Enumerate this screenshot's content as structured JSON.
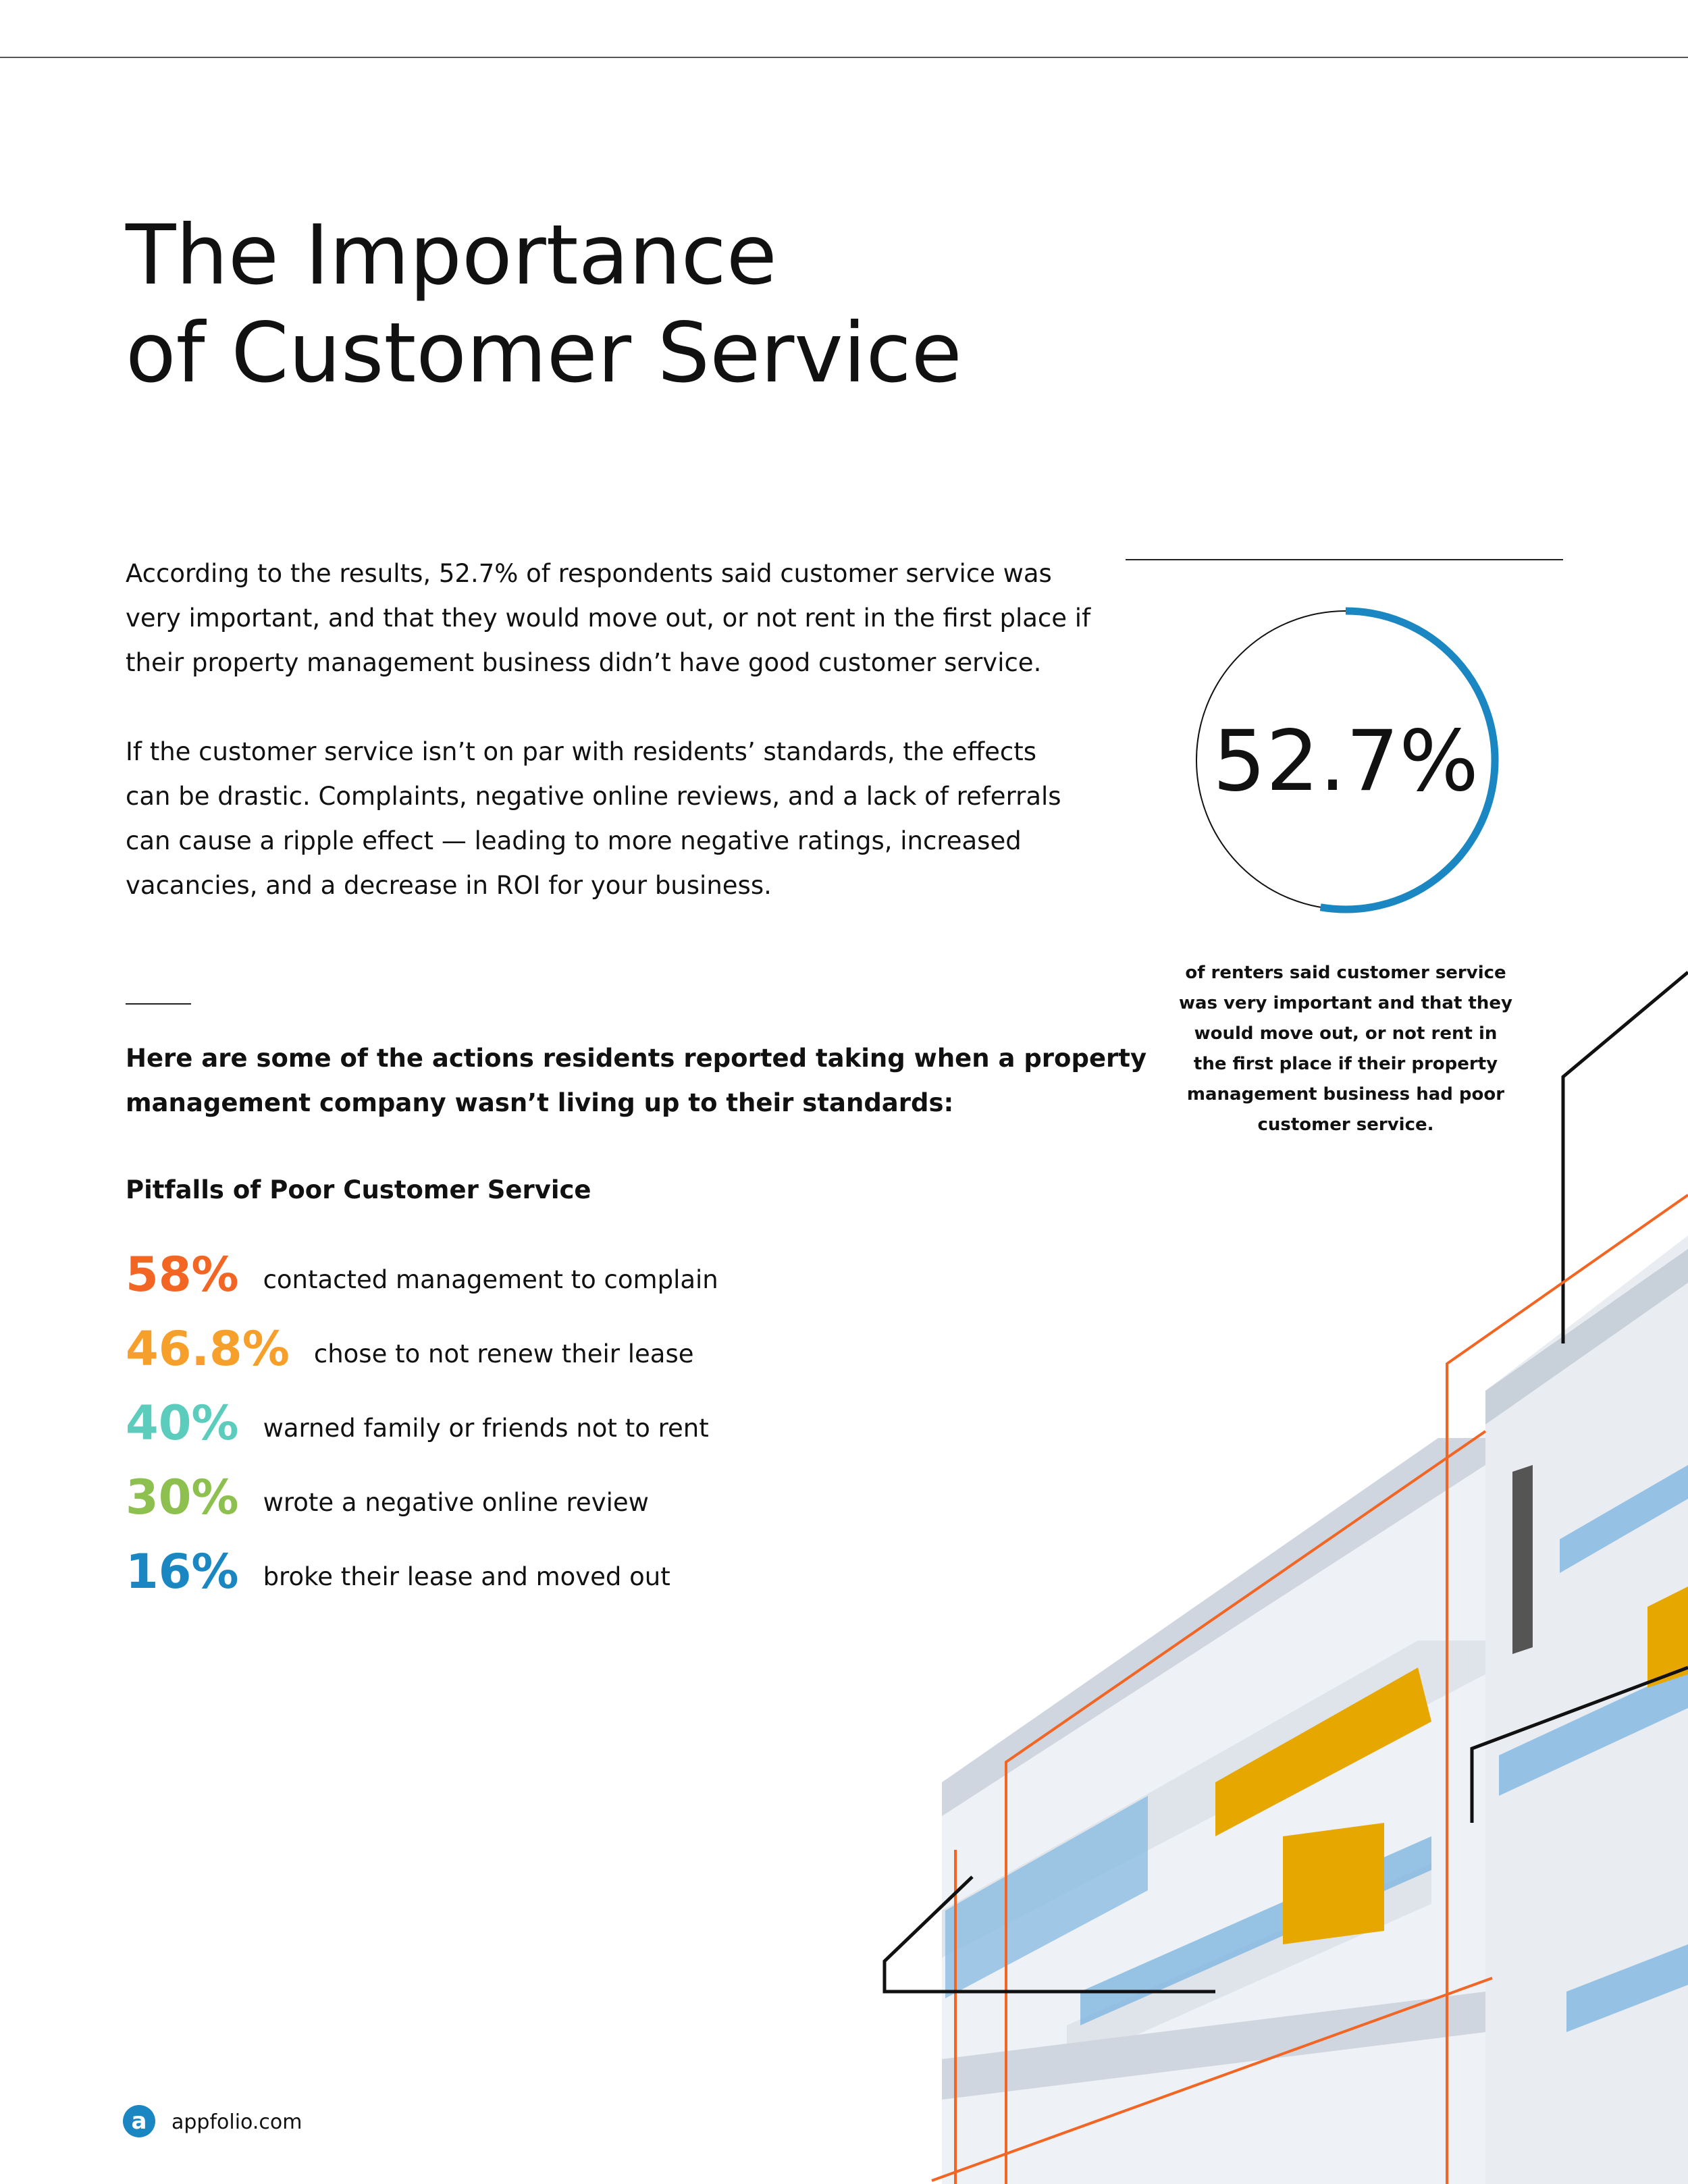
{
  "header": {
    "title_lines": [
      "The Importance",
      "of Customer Service"
    ]
  },
  "body": {
    "paragraphs": [
      [
        "According to the results, 52.7% of respondents said customer service was",
        "very important, and that they would move out, or not rent in the first place if",
        "their property management business didn’t have good customer service."
      ],
      [
        "If the customer service isn’t on par with residents’ standards, the effects",
        "can be drastic. Complaints, negative online reviews, and a lack of referrals",
        "can cause a ripple effect — leading to more negative ratings, increased",
        "vacancies, and a decrease in ROI for your business."
      ]
    ],
    "intro_lines": [
      "Here are some of the actions residents reported taking when a property",
      "management company wasn’t living up to their standards:"
    ],
    "list_title": "Pitfalls of Poor Customer Service",
    "stats": [
      {
        "value": "58%",
        "text": "contacted management to complain",
        "color": "#f26522"
      },
      {
        "value": "46.8%",
        "text": "chose to not renew their lease",
        "color": "#f6a02b"
      },
      {
        "value": "40%",
        "text": "warned family or friends not to rent",
        "color": "#5ccdbd"
      },
      {
        "value": "30%",
        "text": "wrote a negative online review",
        "color": "#8dc04f"
      },
      {
        "value": "16%",
        "text": "broke their lease and moved out",
        "color": "#1a87c2"
      }
    ]
  },
  "callout": {
    "donut": {
      "value": 52.7,
      "label": "52.7%",
      "color": "#1a87c2"
    },
    "caption_lines": [
      "of renters said customer service",
      "was very important and that they",
      "would move out, or not rent in",
      "the first place if their property",
      "management business had poor",
      "customer service."
    ]
  },
  "footer": {
    "site": "appfolio.com"
  }
}
